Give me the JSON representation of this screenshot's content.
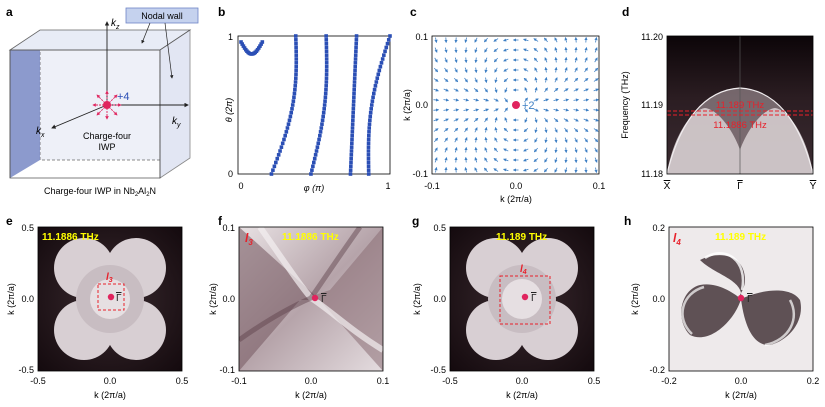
{
  "panels": {
    "a": {
      "label": "a",
      "kz": "k",
      "kz_sub": "z",
      "kx": "k",
      "kx_sub": "x",
      "ky": "k",
      "ky_sub": "y",
      "nodal_wall": "Nodal wall",
      "charge": "+4",
      "iwp_line1": "Charge-four",
      "iwp_line2": "IWP",
      "caption_pre": "Charge-four IWP in Nb",
      "caption_sub1": "2",
      "caption_mid": "Al",
      "caption_sub2": "2",
      "caption_post": "N"
    },
    "b": {
      "label": "b",
      "ylabel": "θ (2π)",
      "xlabel": "φ (π)",
      "yticks": [
        "1",
        "0"
      ],
      "xticks": [
        "0",
        "1"
      ]
    },
    "c": {
      "label": "c",
      "ylabel": "k (2π/a)",
      "ylabel_sub": "y",
      "xlabel": "k (2π/a)",
      "xlabel_sub": "x",
      "yticks": [
        "0.1",
        "0.0",
        "-0.1"
      ],
      "xticks": [
        "-0.1",
        "0.0",
        "0.1"
      ],
      "charge": "+2"
    },
    "d": {
      "label": "d",
      "ylabel": "Frequency (THz)",
      "yticks": [
        "11.20",
        "11.19",
        "11.18"
      ],
      "xticks": [
        "X",
        "Γ",
        "Y"
      ],
      "line1": "11.189 THz",
      "line2": "11.1886 THz"
    },
    "e": {
      "label": "e",
      "title": "11.1886 THz",
      "box": "l",
      "box_sub": "3",
      "gamma": "Γ",
      "yticks": [
        "0.5",
        "0.0",
        "-0.5"
      ],
      "xticks": [
        "-0.5",
        "0.0",
        "0.5"
      ],
      "ylabel": "k (2π/a)",
      "ylabel_sub": "y",
      "xlabel": "k (2π/a)",
      "xlabel_sub": "x"
    },
    "f": {
      "label": "f",
      "title": "11.1886 THz",
      "tag": "l",
      "tag_sub": "3",
      "gamma": "Γ",
      "yticks": [
        "0.1",
        "0.0",
        "-0.1"
      ],
      "xticks": [
        "-0.1",
        "0.0",
        "0.1"
      ],
      "ylabel": "k (2π/a)",
      "ylabel_sub": "y",
      "xlabel": "k (2π/a)",
      "xlabel_sub": "x"
    },
    "g": {
      "label": "g",
      "title": "11.189 THz",
      "box": "l",
      "box_sub": "4",
      "gamma": "Γ",
      "yticks": [
        "0.5",
        "0.0",
        "-0.5"
      ],
      "xticks": [
        "-0.5",
        "0.0",
        "0.5"
      ],
      "ylabel": "k (2π/a)",
      "ylabel_sub": "y",
      "xlabel": "k (2π/a)",
      "xlabel_sub": "x"
    },
    "h": {
      "label": "h",
      "title": "11.189 THz",
      "tag": "l",
      "tag_sub": "4",
      "gamma": "Γ",
      "yticks": [
        "0.2",
        "0.0",
        "-0.2"
      ],
      "xticks": [
        "-0.2",
        "0.0",
        "0.2"
      ],
      "ylabel": "k (2π/a)",
      "ylabel_sub": "y",
      "xlabel": "k (2π/a)",
      "xlabel_sub": "x"
    }
  },
  "colors": {
    "wilson": "#2b4fb5",
    "arrow": "#3d7fc4",
    "node": "#e0245e",
    "highlight": "#ffff00",
    "dash": "#e8202a",
    "cube": "#7f8fc8"
  }
}
